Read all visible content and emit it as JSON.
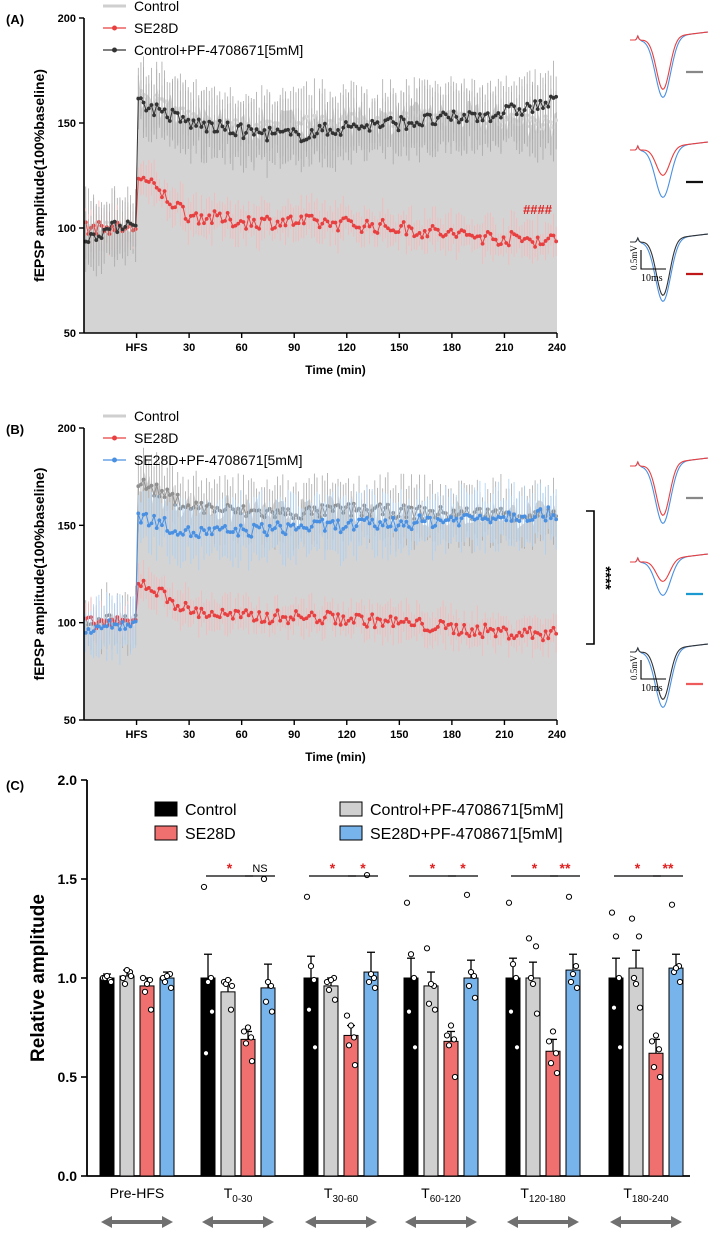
{
  "panel_a": {
    "letter": "(A)",
    "ylabel": "fEPSP amplitude(100%baseline)",
    "xlabel": "Time (min)",
    "y_ticks": [
      "50",
      "100",
      "150",
      "200"
    ],
    "x_ticks": [
      "HFS",
      "30",
      "60",
      "90",
      "120",
      "150",
      "180",
      "210",
      "240"
    ],
    "legend": [
      "Control",
      "SE28D",
      "Control+PF-4708671[5mM]"
    ],
    "annotation": "####",
    "scale_v": "0.5mV",
    "scale_t": "10ms"
  },
  "panel_b": {
    "letter": "(B)",
    "ylabel": "fEPSP amplitude(100%baseline)",
    "xlabel": "Time (min)",
    "y_ticks": [
      "50",
      "100",
      "150",
      "200"
    ],
    "x_ticks": [
      "HFS",
      "30",
      "60",
      "90",
      "120",
      "150",
      "180",
      "210",
      "240"
    ],
    "legend": [
      "Control",
      "SE28D",
      "SE28D+PF-4708671[5mM]"
    ],
    "annotation": "****",
    "scale_v": "0.5mV",
    "scale_t": "10ms"
  },
  "panel_c": {
    "letter": "(C)",
    "ylabel": "Relative amplitude",
    "y_ticks": [
      "0.0",
      "0.5",
      "1.0",
      "1.5",
      "2.0"
    ],
    "groups": [
      {
        "main": "Pre-HFS",
        "sub": ""
      },
      {
        "main": "T",
        "sub": "0-30"
      },
      {
        "main": "T",
        "sub": "30-60"
      },
      {
        "main": "T",
        "sub": "60-120"
      },
      {
        "main": "T",
        "sub": "120-180"
      },
      {
        "main": "T",
        "sub": "180-240"
      }
    ],
    "legend": [
      "Control",
      "SE28D",
      "Control+PF-4708671[5mM]",
      "SE28D+PF-4708671[5mM]"
    ],
    "sig_left": [
      "",
      "*",
      "*",
      "*",
      "*",
      "*"
    ],
    "sig_right": [
      "",
      "NS",
      "*",
      "*",
      "**",
      "**"
    ]
  },
  "colors": {
    "control": "#000000",
    "se28d": "#f07070",
    "control_pf": "#d0d0d0",
    "se28d_pf": "#78b4ec",
    "trace_red": "#e84040",
    "trace_black": "#333333",
    "trace_blue": "#4a90e2",
    "sig_red": "#e02020",
    "grey_fill": "#d4d4d4"
  },
  "chart_data": [
    {
      "type": "line",
      "title": "(A)",
      "xlabel": "Time (min)",
      "ylabel": "fEPSP amplitude(100%baseline)",
      "ylim": [
        50,
        200
      ],
      "xlim": [
        -30,
        240
      ],
      "x_ticks": [
        "HFS",
        30,
        60,
        90,
        120,
        150,
        180,
        210,
        240
      ],
      "series": [
        {
          "name": "Control",
          "x": [
            -30,
            0,
            1,
            30,
            60,
            90,
            120,
            150,
            180,
            210,
            240
          ],
          "values": [
            100,
            100,
            165,
            152,
            148,
            150,
            151,
            152,
            153,
            152,
            150
          ]
        },
        {
          "name": "SE28D",
          "x": [
            -30,
            0,
            1,
            30,
            60,
            90,
            120,
            150,
            180,
            210,
            240
          ],
          "values": [
            100,
            100,
            125,
            106,
            103,
            103,
            102,
            100,
            97,
            95,
            94
          ]
        },
        {
          "name": "Control+PF-4708671[5mM]",
          "x": [
            -30,
            0,
            1,
            30,
            60,
            90,
            120,
            150,
            180,
            210,
            240
          ],
          "values": [
            95,
            104,
            160,
            150,
            146,
            144,
            148,
            150,
            152,
            155,
            160
          ]
        }
      ]
    },
    {
      "type": "line",
      "title": "(B)",
      "xlabel": "Time (min)",
      "ylabel": "fEPSP amplitude(100%baseline)",
      "ylim": [
        50,
        200
      ],
      "xlim": [
        -30,
        240
      ],
      "x_ticks": [
        "HFS",
        30,
        60,
        90,
        120,
        150,
        180,
        210,
        240
      ],
      "series": [
        {
          "name": "Control",
          "x": [
            -30,
            0,
            1,
            30,
            60,
            90,
            120,
            150,
            180,
            210,
            240
          ],
          "values": [
            100,
            102,
            172,
            160,
            157,
            156,
            158,
            157,
            156,
            156,
            155
          ]
        },
        {
          "name": "SE28D",
          "x": [
            -30,
            0,
            1,
            30,
            60,
            90,
            120,
            150,
            180,
            210,
            240
          ],
          "values": [
            100,
            100,
            122,
            106,
            103,
            103,
            102,
            100,
            97,
            95,
            94
          ]
        },
        {
          "name": "SE28D+PF-4708671[5mM]",
          "x": [
            -30,
            0,
            1,
            30,
            60,
            90,
            120,
            150,
            180,
            210,
            240
          ],
          "values": [
            97,
            100,
            155,
            146,
            147,
            149,
            150,
            151,
            153,
            155,
            156
          ]
        }
      ]
    },
    {
      "type": "bar",
      "title": "(C)",
      "ylabel": "Relative amplitude",
      "ylim": [
        0,
        2.0
      ],
      "categories": [
        "Pre-HFS",
        "T0-30",
        "T30-60",
        "T60-120",
        "T120-180",
        "T180-240"
      ],
      "series": [
        {
          "name": "Control",
          "values": [
            1.0,
            1.0,
            1.0,
            1.0,
            1.0,
            1.0
          ],
          "errors": [
            0.02,
            0.12,
            0.11,
            0.1,
            0.1,
            0.1
          ]
        },
        {
          "name": "Control+PF-4708671[5mM]",
          "values": [
            1.01,
            0.93,
            0.96,
            0.96,
            1.0,
            1.05
          ],
          "errors": [
            0.03,
            0.06,
            0.04,
            0.07,
            0.08,
            0.09
          ]
        },
        {
          "name": "SE28D",
          "values": [
            0.96,
            0.69,
            0.71,
            0.68,
            0.63,
            0.62
          ],
          "errors": [
            0.04,
            0.04,
            0.05,
            0.05,
            0.06,
            0.07
          ]
        },
        {
          "name": "SE28D+PF-4708671[5mM]",
          "values": [
            1.0,
            0.95,
            1.03,
            1.0,
            1.04,
            1.05
          ],
          "errors": [
            0.03,
            0.12,
            0.1,
            0.09,
            0.08,
            0.07
          ]
        }
      ],
      "points": {
        "Control": [
          [
            1.0,
            0.99,
            1.0,
            0.98,
            1.01
          ],
          [
            1.46,
            1.0,
            0.62,
            0.83,
            0.98
          ],
          [
            1.41,
            0.99,
            0.84,
            0.65,
            1.06
          ],
          [
            1.38,
            1.0,
            0.83,
            0.65,
            1.12
          ],
          [
            1.38,
            1.0,
            0.83,
            0.65,
            1.07
          ],
          [
            1.33,
            1.0,
            0.85,
            0.65,
            1.21
          ]
        ],
        "Control+PF-4708671[5mM]": [
          [
            1.0,
            1.03,
            0.97,
            1.01,
            1.04
          ],
          [
            0.98,
            0.84,
            0.97,
            0.96,
            0.99
          ],
          [
            0.98,
            1.0,
            0.94,
            0.89,
            0.99
          ],
          [
            1.15,
            0.96,
            0.87,
            0.84,
            0.97
          ],
          [
            1.2,
            1.16,
            1.0,
            0.82,
            0.97
          ],
          [
            1.3,
            1.21,
            1.0,
            0.85,
            0.97
          ]
        ],
        "SE28D": [
          [
            1.0,
            0.99,
            0.93,
            0.84,
            0.97
          ],
          [
            0.73,
            0.7,
            0.67,
            0.58,
            0.75
          ],
          [
            0.81,
            0.7,
            0.66,
            0.56,
            0.76
          ],
          [
            0.71,
            0.69,
            0.66,
            0.5,
            0.76
          ],
          [
            0.68,
            0.62,
            0.57,
            0.52,
            0.73
          ],
          [
            0.68,
            0.64,
            0.55,
            0.5,
            0.71
          ]
        ],
        "SE28D+PF-4708671[5mM]": [
          [
            1.0,
            1.02,
            0.98,
            0.95,
            1.01
          ],
          [
            1.5,
            0.96,
            0.88,
            0.83,
            0.98
          ],
          [
            1.52,
            1.0,
            0.98,
            0.95,
            1.02
          ],
          [
            1.42,
            1.01,
            0.96,
            0.9,
            1.03
          ],
          [
            1.41,
            1.06,
            0.98,
            0.95,
            1.02
          ],
          [
            1.37,
            1.06,
            1.03,
            0.98,
            1.05
          ]
        ]
      },
      "significance": {
        "Control_vs_SE28D": [
          "",
          "*",
          "*",
          "*",
          "*",
          "*"
        ],
        "SE28D_vs_SE28D+PF": [
          "",
          "NS",
          "*",
          "*",
          "**",
          "**"
        ]
      }
    }
  ]
}
